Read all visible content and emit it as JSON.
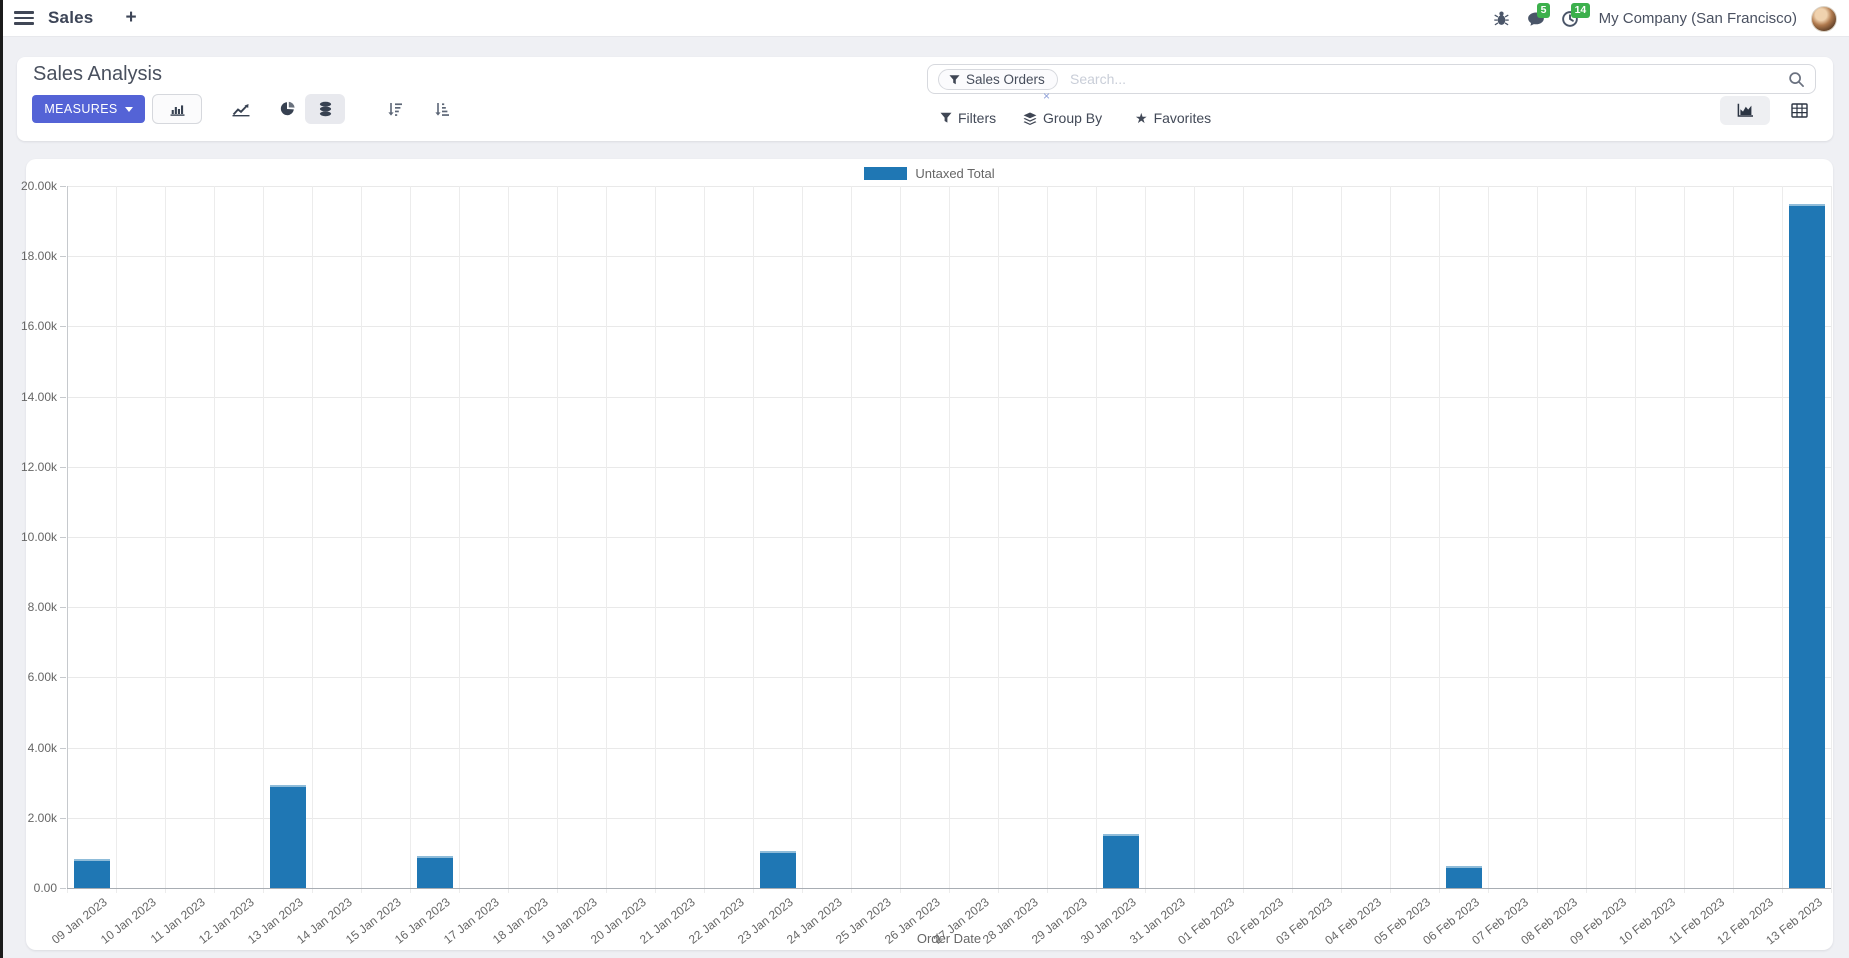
{
  "navbar": {
    "app_name": "Sales",
    "plus": "+",
    "messages_badge": "5",
    "activities_badge": "14",
    "company": "My Company (San Francisco)"
  },
  "control_panel": {
    "title": "Sales Analysis",
    "measures_label": "MEASURES",
    "search": {
      "facet": "Sales Orders",
      "facet_remove": "×",
      "placeholder": "Search..."
    },
    "filters_label": "Filters",
    "group_by_label": "Group By",
    "favorites_label": "Favorites"
  },
  "colors": {
    "accent": "#5463d6",
    "bar": "#1f77b4",
    "badge_green": "#3cb04c"
  },
  "chart_data": {
    "type": "bar",
    "title": "",
    "xlabel": "Order Date",
    "ylabel": "",
    "legend_position": "top",
    "grid": true,
    "ylim": [
      0,
      20000
    ],
    "ytick_step": 2000,
    "ytick_labels": [
      "0.00",
      "2.00k",
      "4.00k",
      "6.00k",
      "8.00k",
      "10.00k",
      "12.00k",
      "14.00k",
      "16.00k",
      "18.00k",
      "20.00k"
    ],
    "categories": [
      "09 Jan 2023",
      "10 Jan 2023",
      "11 Jan 2023",
      "12 Jan 2023",
      "13 Jan 2023",
      "14 Jan 2023",
      "15 Jan 2023",
      "16 Jan 2023",
      "17 Jan 2023",
      "18 Jan 2023",
      "19 Jan 2023",
      "20 Jan 2023",
      "21 Jan 2023",
      "22 Jan 2023",
      "23 Jan 2023",
      "24 Jan 2023",
      "25 Jan 2023",
      "26 Jan 2023",
      "27 Jan 2023",
      "28 Jan 2023",
      "29 Jan 2023",
      "30 Jan 2023",
      "31 Jan 2023",
      "01 Feb 2023",
      "02 Feb 2023",
      "03 Feb 2023",
      "04 Feb 2023",
      "05 Feb 2023",
      "06 Feb 2023",
      "07 Feb 2023",
      "08 Feb 2023",
      "09 Feb 2023",
      "10 Feb 2023",
      "11 Feb 2023",
      "12 Feb 2023",
      "13 Feb 2023"
    ],
    "series": [
      {
        "name": "Untaxed Total",
        "color": "#1f77b4",
        "values": [
          820,
          0,
          0,
          0,
          2930,
          0,
          0,
          900,
          0,
          0,
          0,
          0,
          0,
          0,
          1050,
          0,
          0,
          0,
          0,
          0,
          0,
          1540,
          0,
          0,
          0,
          0,
          0,
          0,
          630,
          0,
          0,
          0,
          0,
          0,
          0,
          19500
        ]
      }
    ]
  }
}
